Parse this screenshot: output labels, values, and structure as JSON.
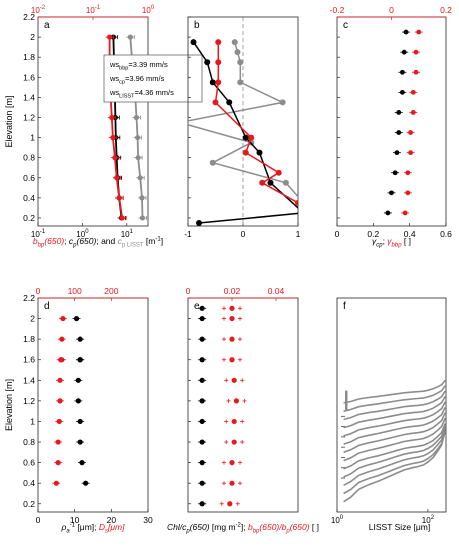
{
  "colors": {
    "black": "#000000",
    "red": "#e8191c",
    "gray": "#8c8c8c",
    "axis_red": "#e8191c"
  },
  "y_axis": {
    "label": "Elevation [m]",
    "ticks": [
      "0.2",
      "0.4",
      "0.6",
      "0.8",
      "1",
      "1.2",
      "1.4",
      "1.6",
      "1.8",
      "2",
      "2.2"
    ]
  },
  "chart_data": [
    {
      "id": "a",
      "panel_label": "a",
      "type": "scatter",
      "xscale": "log",
      "xlim_bottom": [
        0.1,
        30
      ],
      "xticks_bottom": [
        "10^{-1}",
        "10^{0}",
        "10^{1}"
      ],
      "xlim_top": [
        0.01,
        1
      ],
      "xticks_top": [
        "10^{-2}",
        "10^{-1}",
        "10^{0}"
      ],
      "ylim": [
        0.12,
        2.2
      ],
      "xlabel_parts": [
        {
          "text": "b",
          "color": "red",
          "italic": true
        },
        {
          "text": "bp",
          "color": "red",
          "italic": true,
          "sub": true
        },
        {
          "text": "(650)",
          "color": "red",
          "italic": true
        },
        {
          "text": "; ",
          "color": "black",
          "italic": false
        },
        {
          "text": "c",
          "color": "black",
          "italic": true
        },
        {
          "text": "p",
          "color": "black",
          "italic": true,
          "sub": true
        },
        {
          "text": "(650)",
          "color": "black",
          "italic": true
        },
        {
          "text": "; and ",
          "color": "black",
          "italic": false
        },
        {
          "text": "c",
          "color": "gray",
          "italic": true
        },
        {
          "text": "p LISST",
          "color": "gray",
          "italic": false,
          "sub": true
        },
        {
          "text": " [m",
          "color": "black",
          "italic": false
        },
        {
          "text": "-1",
          "color": "black",
          "italic": false,
          "sup": true
        },
        {
          "text": "]",
          "color": "black",
          "italic": false
        }
      ],
      "legend_box": [
        {
          "main": "ws",
          "sub": "bbp",
          "value": "=3.39 mm/s"
        },
        {
          "main": "ws",
          "sub": "cp",
          "value": "=3.96 mm/s"
        },
        {
          "main": "ws",
          "sub": "LISST",
          "value": "=4.36 mm/s"
        }
      ],
      "series": [
        {
          "name": "",
          "color": "gray",
          "axis": "bottom",
          "line": true,
          "x": [
            22.5,
            22.0,
            20.0,
            18.0,
            17.5,
            16.5,
            15.5,
            14.5,
            13.0,
            12.0
          ],
          "y": [
            0.2,
            0.4,
            0.6,
            0.8,
            1.0,
            1.2,
            1.4,
            1.6,
            1.8,
            2.0
          ]
        },
        {
          "name": "",
          "color": "black",
          "axis": "top",
          "line": true,
          "x": [
            0.33,
            0.3,
            0.28,
            0.27,
            0.26,
            0.255,
            0.25,
            0.245,
            0.24,
            0.235
          ],
          "y": [
            0.2,
            0.4,
            0.6,
            0.8,
            1.0,
            1.2,
            1.4,
            1.6,
            1.8,
            2.0
          ]
        },
        {
          "name": "",
          "color": "red",
          "axis": "top",
          "line": true,
          "x": [
            0.34,
            0.3,
            0.27,
            0.25,
            0.23,
            0.22,
            0.21,
            0.205,
            0.2,
            0.2
          ],
          "y": [
            0.2,
            0.4,
            0.6,
            0.8,
            1.0,
            1.2,
            1.4,
            1.6,
            1.8,
            2.0
          ]
        }
      ]
    },
    {
      "id": "b",
      "panel_label": "b",
      "type": "line",
      "xlim": [
        -1,
        1
      ],
      "xticks": [
        "-1",
        "0",
        "1"
      ],
      "ylim": [
        0.12,
        2.2
      ],
      "series": [
        {
          "name": "",
          "color": "gray",
          "x": [
            1.1,
            0.78,
            -0.55,
            0.15,
            -1.15,
            0.72,
            -0.05,
            -0.05,
            -0.1,
            -0.15
          ],
          "y": [
            0.35,
            0.55,
            0.75,
            0.95,
            1.15,
            1.35,
            1.55,
            1.75,
            1.85,
            1.95
          ]
        },
        {
          "name": "",
          "color": "black",
          "x": [
            -0.8,
            1.1,
            0.5,
            0.3,
            0.05,
            -0.25,
            -0.55,
            -0.65,
            -0.9
          ],
          "y": [
            0.15,
            0.25,
            0.55,
            0.85,
            1.0,
            1.35,
            1.55,
            1.75,
            1.95
          ]
        },
        {
          "name": "",
          "color": "red",
          "x": [
            1.0,
            0.35,
            0.65,
            0.05,
            0.15,
            -0.5,
            -0.45,
            -0.45,
            -0.45
          ],
          "y": [
            0.35,
            0.55,
            0.65,
            0.85,
            1.0,
            1.35,
            1.55,
            1.75,
            1.95
          ]
        }
      ]
    },
    {
      "id": "c",
      "panel_label": "c",
      "type": "scatter",
      "xlim_bottom": [
        0,
        0.6
      ],
      "xticks_bottom": [
        "0",
        "0.2",
        "0.4",
        "0.6"
      ],
      "xlim_top": [
        -0.2,
        0.2
      ],
      "xticks_top": [
        "-0.2",
        "0",
        "0.2"
      ],
      "ylim": [
        0.12,
        2.2
      ],
      "xlabel_parts": [
        {
          "text": "γ",
          "color": "black",
          "italic": true
        },
        {
          "text": "cp",
          "color": "black",
          "italic": true,
          "sub": true
        },
        {
          "text": "; ",
          "color": "black",
          "italic": false
        },
        {
          "text": "γ",
          "color": "red",
          "italic": true
        },
        {
          "text": "bbp",
          "color": "red",
          "italic": true,
          "sub": true
        },
        {
          "text": " [ ]",
          "color": "black",
          "italic": false
        }
      ],
      "series": [
        {
          "name": "",
          "color": "black",
          "axis": "bottom",
          "x": [
            0.28,
            0.3,
            0.32,
            0.33,
            0.34,
            0.34,
            0.36,
            0.36,
            0.37,
            0.38
          ],
          "y": [
            0.25,
            0.45,
            0.65,
            0.85,
            1.05,
            1.25,
            1.45,
            1.65,
            1.85,
            2.05
          ]
        },
        {
          "name": "",
          "color": "red",
          "axis": "top",
          "x": [
            0.05,
            0.06,
            0.06,
            0.07,
            0.07,
            0.08,
            0.08,
            0.09,
            0.09,
            0.1
          ],
          "y": [
            0.25,
            0.45,
            0.65,
            0.85,
            1.05,
            1.25,
            1.45,
            1.65,
            1.85,
            2.05
          ]
        }
      ]
    },
    {
      "id": "d",
      "panel_label": "d",
      "type": "scatter",
      "xlim_bottom": [
        0,
        30
      ],
      "xticks_bottom": [
        "0",
        "10",
        "20",
        "30"
      ],
      "xlim_top": [
        0,
        300
      ],
      "xticks_top": [
        "0",
        "100",
        "200"
      ],
      "ylim": [
        0.12,
        2.2
      ],
      "xlabel_parts": [
        {
          "text": "ρ",
          "color": "black",
          "italic": true
        },
        {
          "text": "a",
          "color": "black",
          "italic": true,
          "sub": true
        },
        {
          "text": "-1",
          "color": "black",
          "italic": false,
          "sup": true
        },
        {
          "text": " [μm]; ",
          "color": "black",
          "italic": false
        },
        {
          "text": "D",
          "color": "red",
          "italic": true
        },
        {
          "text": "s",
          "color": "red",
          "italic": true,
          "sub": true
        },
        {
          "text": "[μm]",
          "color": "red",
          "italic": true
        }
      ],
      "series": [
        {
          "name": "",
          "color": "black",
          "axis": "bottom",
          "x": [
            13.0,
            12.0,
            11.5,
            11.5,
            11.0,
            11.0,
            11.5,
            11.5,
            10.5,
            11.5
          ],
          "y": [
            0.4,
            0.6,
            0.8,
            1.0,
            1.2,
            1.4,
            1.6,
            1.8,
            2.0,
            1.6
          ]
        },
        {
          "name": "",
          "color": "red",
          "axis": "top",
          "x": [
            50,
            55,
            55,
            58,
            60,
            60,
            62,
            65,
            68,
            65
          ],
          "y": [
            0.4,
            0.6,
            0.8,
            1.0,
            1.2,
            1.4,
            1.6,
            1.8,
            2.0,
            1.6
          ]
        }
      ]
    },
    {
      "id": "e",
      "panel_label": "e",
      "type": "scatter",
      "xlim_bottom": [
        0,
        70
      ],
      "xticks_bottom": [],
      "xlim_top": [
        0,
        0.05
      ],
      "xticks_top": [
        "0",
        "0.02",
        "0.04"
      ],
      "ylim": [
        0.12,
        2.2
      ],
      "xlabel_parts": [
        {
          "text": "Chl/c",
          "color": "black",
          "italic": true
        },
        {
          "text": "p",
          "color": "black",
          "italic": true,
          "sub": true
        },
        {
          "text": "(650)",
          "color": "black",
          "italic": true
        },
        {
          "text": " [mg m",
          "color": "black",
          "italic": false
        },
        {
          "text": "-2",
          "color": "black",
          "italic": false,
          "sup": true
        },
        {
          "text": "];  ",
          "color": "black",
          "italic": false
        },
        {
          "text": "b",
          "color": "red",
          "italic": true
        },
        {
          "text": "bp",
          "color": "red",
          "italic": true,
          "sub": true
        },
        {
          "text": "(650)/b",
          "color": "red",
          "italic": true
        },
        {
          "text": "p",
          "color": "red",
          "italic": true,
          "sub": true
        },
        {
          "text": "(650)",
          "color": "red",
          "italic": true
        },
        {
          "text": " [ ]",
          "color": "black",
          "italic": false
        }
      ],
      "series": [
        {
          "name": "",
          "color": "black",
          "axis": "bottom",
          "x": [
            9,
            9,
            9,
            9,
            9,
            9,
            9,
            9,
            9,
            9,
            9
          ],
          "y": [
            0.2,
            0.4,
            0.6,
            0.8,
            1.0,
            1.2,
            1.4,
            1.6,
            1.8,
            2.0,
            2.1
          ]
        },
        {
          "name": "",
          "color": "red",
          "axis": "top",
          "x": [
            0.019,
            0.02,
            0.02,
            0.021,
            0.021,
            0.022,
            0.021,
            0.02,
            0.02,
            0.02,
            0.02
          ],
          "y": [
            0.2,
            0.4,
            0.6,
            0.8,
            1.0,
            1.2,
            1.4,
            1.6,
            1.8,
            2.0,
            2.1
          ]
        }
      ]
    },
    {
      "id": "f",
      "panel_label": "f",
      "type": "line",
      "xscale": "log",
      "xlim": [
        1,
        250
      ],
      "xticks": [
        "10^{0}",
        "10^{2}"
      ],
      "xlabel_parts": [
        {
          "text": "LISST Size [μm]",
          "color": "black",
          "italic": false
        }
      ],
      "curves_x": [
        1.4,
        2,
        3,
        5,
        8,
        12,
        20,
        30,
        45,
        60,
        80,
        100,
        130,
        160,
        200,
        240
      ],
      "curves_shape": [
        0.0,
        0.08,
        0.22,
        0.3,
        0.36,
        0.42,
        0.5,
        0.56,
        0.6,
        0.62,
        0.65,
        0.7,
        0.78,
        0.88,
        1.0,
        1.25
      ],
      "curve_baselines": [
        0.22,
        0.3,
        0.38,
        0.46,
        0.54,
        0.62,
        0.7,
        0.78,
        0.86,
        0.94,
        1.02,
        1.1,
        1.18
      ],
      "curve_amplitudes": [
        0.25,
        0.22,
        0.2,
        0.18,
        0.16,
        0.15,
        0.14,
        0.13,
        0.12,
        0.11,
        0.1,
        0.09,
        0.08
      ],
      "dashes": [
        0.45,
        0.55,
        0.65,
        0.75,
        0.85,
        0.95,
        1.05
      ]
    }
  ]
}
